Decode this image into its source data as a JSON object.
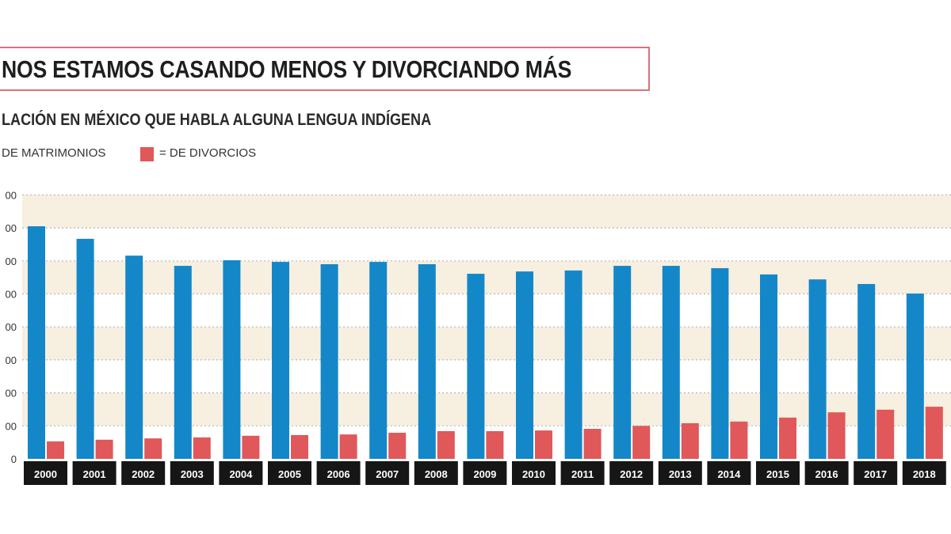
{
  "chart_data": {
    "type": "bar",
    "title": "NOS ESTAMOS CASANDO MENOS Y DIVORCIANDO MÁS",
    "subtitle": "LACIÓN EN MÉXICO QUE HABLA ALGUNA LENGUA INDÍGENA",
    "categories": [
      "2000",
      "2001",
      "2002",
      "2003",
      "2004",
      "2005",
      "2006",
      "2007",
      "2008",
      "2009",
      "2010",
      "2011",
      "2012",
      "2013",
      "2014",
      "2015",
      "2016",
      "2017",
      "2018"
    ],
    "series": [
      {
        "name": "DE MATRIMONIOS",
        "color": "#1487c9",
        "values": [
          7.05,
          6.67,
          6.16,
          5.85,
          6.02,
          5.97,
          5.9,
          5.97,
          5.9,
          5.61,
          5.68,
          5.71,
          5.85,
          5.85,
          5.78,
          5.59,
          5.44,
          5.3,
          5.01
        ]
      },
      {
        "name": "= DE DIVORCIOS",
        "color": "#e0585a",
        "values": [
          0.53,
          0.58,
          0.62,
          0.65,
          0.7,
          0.72,
          0.74,
          0.79,
          0.84,
          0.84,
          0.86,
          0.91,
          1.0,
          1.08,
          1.13,
          1.25,
          1.41,
          1.49,
          1.58
        ]
      }
    ],
    "ylim": [
      0,
      8
    ],
    "yticks": [
      0,
      1,
      2,
      3,
      4,
      5,
      6,
      7,
      8
    ],
    "ytick_labels": [
      "0",
      "00",
      "00",
      "00",
      "00",
      "00",
      "00",
      "00",
      "00"
    ],
    "grid": true,
    "legend_placement": "top-left",
    "band_color": "#f7efdf"
  }
}
